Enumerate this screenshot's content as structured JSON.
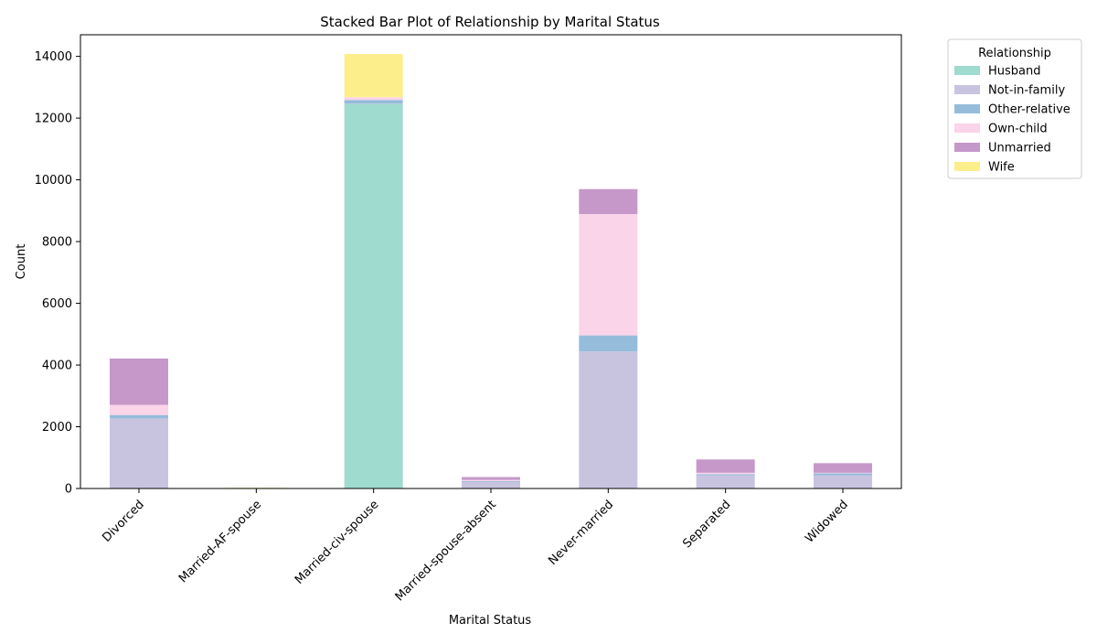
{
  "chart_data": {
    "type": "bar",
    "stacked": true,
    "title": "Stacked Bar Plot of Relationship by Marital Status",
    "xlabel": "Marital Status",
    "ylabel": "Count",
    "ylim": [
      0,
      14700
    ],
    "yticks": [
      0,
      2000,
      4000,
      6000,
      8000,
      10000,
      12000,
      14000
    ],
    "grid": false,
    "legend": {
      "title": "Relationship",
      "placement": "outside-top-right"
    },
    "categories": [
      "Divorced",
      "Married-AF-spouse",
      "Married-civ-spouse",
      "Married-spouse-absent",
      "Never-married",
      "Separated",
      "Widowed"
    ],
    "series": [
      {
        "name": "Husband",
        "color": "#9fdbcf",
        "values": [
          0,
          9,
          12460,
          0,
          0,
          0,
          0
        ]
      },
      {
        "name": "Not-in-family",
        "color": "#c8c4e0",
        "values": [
          2270,
          0,
          17,
          210,
          4440,
          420,
          430
        ]
      },
      {
        "name": "Other-relative",
        "color": "#95bcdb",
        "values": [
          110,
          1,
          110,
          30,
          520,
          40,
          60
        ]
      },
      {
        "name": "Own-child",
        "color": "#fad4e8",
        "values": [
          330,
          1,
          90,
          40,
          3930,
          50,
          20
        ]
      },
      {
        "name": "Unmarried",
        "color": "#c598c9",
        "values": [
          1500,
          0,
          0,
          90,
          810,
          430,
          310
        ]
      },
      {
        "name": "Wife",
        "color": "#fdee8c",
        "values": [
          0,
          12,
          1400,
          0,
          0,
          0,
          0
        ]
      }
    ]
  }
}
